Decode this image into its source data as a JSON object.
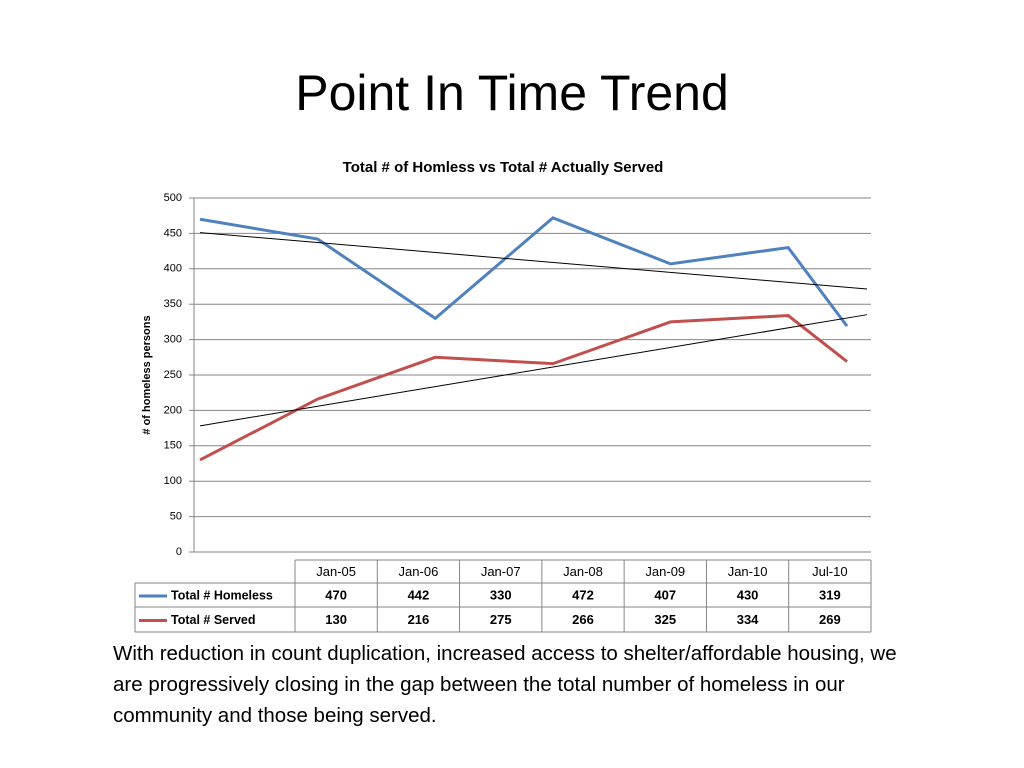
{
  "title": "Point In Time Trend",
  "chart_data": {
    "type": "line",
    "title": "Total # of Homless vs Total # Actually Served",
    "y_label": "# of homeless persons",
    "categories": [
      "Jan-05",
      "Jan-06",
      "Jan-07",
      "Jan-08",
      "Jan-09",
      "Jan-10",
      "Jul-10"
    ],
    "series": [
      {
        "name": "Total # Homeless",
        "color": "#4f81bd",
        "values": [
          470,
          442,
          330,
          472,
          407,
          430,
          319
        ]
      },
      {
        "name": "Total # Served",
        "color": "#c0504d",
        "values": [
          130,
          216,
          275,
          266,
          325,
          334,
          269
        ]
      }
    ],
    "ylim": [
      0,
      500
    ],
    "yticks": [
      0,
      50,
      100,
      150,
      200,
      250,
      300,
      350,
      400,
      450,
      500
    ],
    "grid": true,
    "trendline": true,
    "data_table": true
  },
  "body_text": "With reduction in count duplication, increased access to shelter/affordable housing, we are progressively closing in the gap between the total number of homeless in our community and those being served."
}
